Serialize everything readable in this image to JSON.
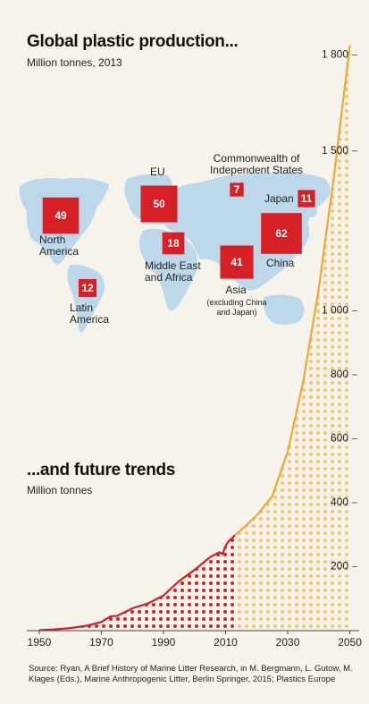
{
  "chart_data": [
    {
      "type": "proportional-squares",
      "title": "Global plastic production...",
      "subtitle": "Million tonnes, 2013",
      "color": "#d71f26",
      "regions": [
        {
          "name": "North America",
          "value": 49
        },
        {
          "name": "EU",
          "value": 50
        },
        {
          "name": "Commonwealth of Independent States",
          "value": 7
        },
        {
          "name": "Japan",
          "value": 11
        },
        {
          "name": "Middle East and Africa",
          "value": 18
        },
        {
          "name": "China",
          "value": 62
        },
        {
          "name": "Asia",
          "note": "(excluding China and Japan)",
          "value": 41
        },
        {
          "name": "Latin America",
          "value": 12
        }
      ]
    },
    {
      "type": "line",
      "title": "...and future trends",
      "subtitle": "Million tonnes",
      "series": [
        {
          "color": "#d71f26",
          "x": [
            1950,
            1955,
            1960,
            1965,
            1970,
            1973,
            1975,
            1978,
            1980,
            1985,
            1990,
            1995,
            2000,
            2005,
            2008,
            2009,
            2010,
            2011,
            2012,
            2013
          ],
          "values": [
            1.5,
            4,
            8,
            15,
            27,
            45,
            46,
            60,
            70,
            85,
            110,
            155,
            190,
            230,
            245,
            240,
            265,
            280,
            288,
            299
          ]
        },
        {
          "color": "#f0a830",
          "x": [
            2013,
            2015,
            2020,
            2025,
            2030,
            2035,
            2040,
            2045,
            2050
          ],
          "values": [
            299,
            315,
            360,
            420,
            560,
            780,
            1070,
            1430,
            1830
          ]
        }
      ],
      "xlim": [
        1946,
        2053
      ],
      "ylim": [
        0,
        1850
      ],
      "xticks": [
        1950,
        1970,
        1990,
        2010,
        2030,
        2050
      ],
      "yticks": [
        200,
        400,
        600,
        800,
        {
          "value": 1000,
          "label": "1 000"
        },
        {
          "value": 1500,
          "label": "1 500"
        },
        {
          "value": 1800,
          "label": "1 800"
        }
      ]
    }
  ],
  "source": "Source: Ryan, A Brief History of Marine Litter Research, in M. Bergmann, L. Gutow, M. Klages (Eds.), Marine Anthropogenic Litter, Berlin Springer, 2015; Plastics Europe"
}
